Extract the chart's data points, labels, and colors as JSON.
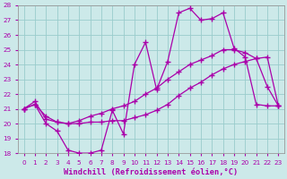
{
  "xlabel": "Windchill (Refroidissement éolien,°C)",
  "xlim": [
    -0.5,
    23.5
  ],
  "ylim": [
    18,
    28
  ],
  "xticks": [
    0,
    1,
    2,
    3,
    4,
    5,
    6,
    7,
    8,
    9,
    10,
    11,
    12,
    13,
    14,
    15,
    16,
    17,
    18,
    19,
    20,
    21,
    22,
    23
  ],
  "yticks": [
    18,
    19,
    20,
    21,
    22,
    23,
    24,
    25,
    26,
    27,
    28
  ],
  "background_color": "#cce9e9",
  "grid_color": "#99cccc",
  "line_color": "#aa00aa",
  "curve1_x": [
    0,
    1,
    2,
    3,
    4,
    5,
    6,
    7,
    8,
    9,
    10,
    11,
    12,
    13,
    14,
    15,
    16,
    17,
    18,
    19,
    20,
    21,
    22,
    23
  ],
  "curve1_y": [
    21.0,
    21.3,
    20.0,
    19.5,
    18.2,
    18.0,
    18.0,
    18.2,
    20.9,
    19.3,
    24.0,
    25.5,
    22.3,
    24.2,
    27.5,
    27.8,
    27.0,
    27.1,
    27.5,
    25.1,
    24.5,
    21.3,
    21.2,
    21.2
  ],
  "curve2_x": [
    0,
    1,
    2,
    3,
    4,
    5,
    6,
    7,
    8,
    9,
    10,
    11,
    12,
    13,
    14,
    15,
    16,
    17,
    18,
    19,
    20,
    21,
    22,
    23
  ],
  "curve2_y": [
    21.0,
    21.3,
    20.5,
    20.1,
    20.0,
    20.0,
    20.1,
    20.1,
    20.2,
    20.2,
    20.4,
    20.6,
    20.9,
    21.3,
    21.9,
    22.4,
    22.8,
    23.3,
    23.7,
    24.0,
    24.2,
    24.4,
    24.5,
    21.2
  ],
  "curve3_x": [
    0,
    1,
    2,
    3,
    4,
    5,
    6,
    7,
    8,
    9,
    10,
    11,
    12,
    13,
    14,
    15,
    16,
    17,
    18,
    19,
    20,
    21,
    22,
    23
  ],
  "curve3_y": [
    21.0,
    21.5,
    20.3,
    20.1,
    20.0,
    20.2,
    20.5,
    20.7,
    21.0,
    21.2,
    21.5,
    22.0,
    22.4,
    23.0,
    23.5,
    24.0,
    24.3,
    24.6,
    25.0,
    25.0,
    24.8,
    24.4,
    22.5,
    21.2
  ],
  "marker": "+",
  "markersize": 4,
  "markeredgewidth": 1.0,
  "linewidth": 0.9,
  "tick_fontsize": 5.2,
  "xlabel_fontsize": 6.2,
  "tick_color": "#aa00aa",
  "label_color": "#aa00aa",
  "spine_color": "#999999"
}
